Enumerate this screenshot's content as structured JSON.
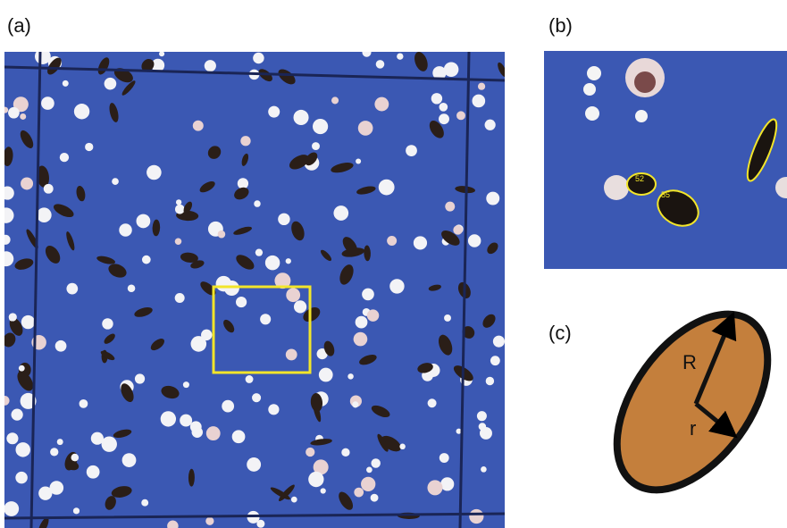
{
  "panels": {
    "a": {
      "label": "(a)"
    },
    "b": {
      "label": "(b)",
      "particle_labels": [
        "52",
        "55"
      ]
    },
    "c": {
      "label": "(c)",
      "major_radius": "R",
      "minor_radius": "r"
    }
  }
}
